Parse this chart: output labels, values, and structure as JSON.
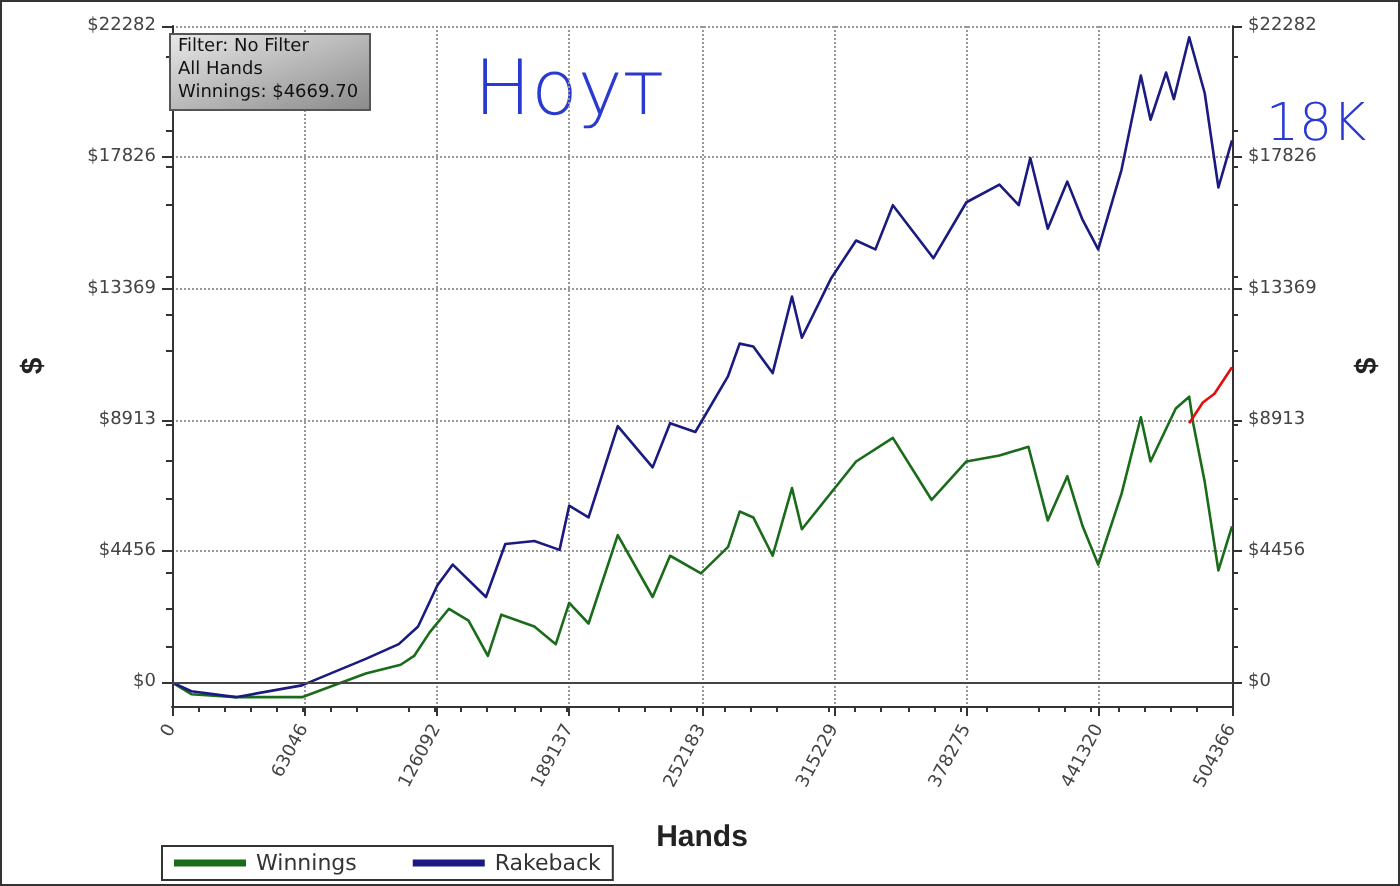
{
  "chart_data": {
    "type": "line",
    "xlabel": "Hands",
    "ylabel": "$",
    "y2label": "$",
    "annotations": [
      "Filter: No Filter",
      "All Hands",
      "Winnings: $4669.70",
      "Ноут",
      "18K"
    ],
    "xlim": [
      0,
      504366
    ],
    "xticks": [
      0,
      63046,
      126092,
      189137,
      252183,
      315229,
      378275,
      441320,
      504366
    ],
    "ylim": [
      -800,
      22282
    ],
    "yticks": [
      {
        "value": 0,
        "label": "$0"
      },
      {
        "value": 4456,
        "label": "$4456"
      },
      {
        "value": 8913,
        "label": "$8913"
      },
      {
        "value": 13369,
        "label": "$13369"
      },
      {
        "value": 17826,
        "label": "$17826"
      },
      {
        "value": 22282,
        "label": "$22282"
      }
    ],
    "y2lim": [
      -800,
      22282
    ],
    "y2ticks": [
      {
        "value": 0,
        "label": "$0"
      },
      {
        "value": 4456,
        "label": "$4456"
      },
      {
        "value": 8913,
        "label": "$8913"
      },
      {
        "value": 13369,
        "label": "$13369"
      },
      {
        "value": 17826,
        "label": "$17826"
      },
      {
        "value": 22282,
        "label": "$22282"
      }
    ],
    "grid": true,
    "legend": "bottom left",
    "marker": "none",
    "line_style": "solid",
    "series": [
      {
        "name": "Winnings",
        "color": "#1a6b1a",
        "x": [
          0,
          9220,
          30400,
          61800,
          92200,
          108800,
          115200,
          122600,
          131800,
          141100,
          150300,
          156700,
          172400,
          182600,
          189000,
          198200,
          212100,
          228700,
          237000,
          251700,
          264600,
          270100,
          276600,
          285800,
          295000,
          299700,
          325500,
          343000,
          361400,
          378000,
          393700,
          407500,
          416700,
          426000,
          433300,
          440700,
          451800,
          461000,
          465600,
          477600,
          484000,
          485900,
          491400,
          497900,
          504366
        ],
        "values": [
          0,
          -400,
          -500,
          -500,
          300,
          600,
          900,
          1700,
          2500,
          2100,
          900,
          2300,
          1900,
          1300,
          2700,
          2000,
          5000,
          2900,
          4300,
          3700,
          4600,
          5800,
          5600,
          4300,
          6600,
          5200,
          7500,
          8300,
          6200,
          7500,
          7700,
          8000,
          5500,
          7000,
          5300,
          4000,
          6400,
          9000,
          7500,
          9300,
          9700,
          8800,
          6800,
          3800,
          5300
        ]
      },
      {
        "name": "Rakeback",
        "color": "#1a1a80",
        "x": [
          0,
          9220,
          30400,
          61800,
          92200,
          107900,
          117100,
          126300,
          133600,
          149400,
          158600,
          172400,
          184400,
          189000,
          198200,
          212100,
          228700,
          237000,
          249000,
          264600,
          270100,
          276600,
          285800,
          295000,
          299700,
          313500,
          325500,
          334700,
          343000,
          362300,
          378000,
          393700,
          402900,
          408400,
          416700,
          426000,
          433300,
          440700,
          451800,
          461000,
          465600,
          473000,
          476700,
          484000,
          491400,
          497900,
          504366
        ],
        "values": [
          0,
          -300,
          -500,
          -100,
          800,
          1300,
          1900,
          3300,
          4000,
          2900,
          4700,
          4800,
          4500,
          6000,
          5600,
          8700,
          7300,
          8800,
          8500,
          10400,
          11500,
          11400,
          10500,
          13100,
          11700,
          13700,
          15000,
          14700,
          16200,
          14400,
          16300,
          16900,
          16200,
          17800,
          15400,
          17000,
          15700,
          14700,
          17400,
          20600,
          19100,
          20700,
          19800,
          21900,
          20000,
          16800,
          18400
        ]
      },
      {
        "color": "#e01010",
        "x": [
          484000,
          490500,
          496000,
          504366
        ],
        "values": [
          8800,
          9500,
          9800,
          10700
        ]
      }
    ]
  }
}
